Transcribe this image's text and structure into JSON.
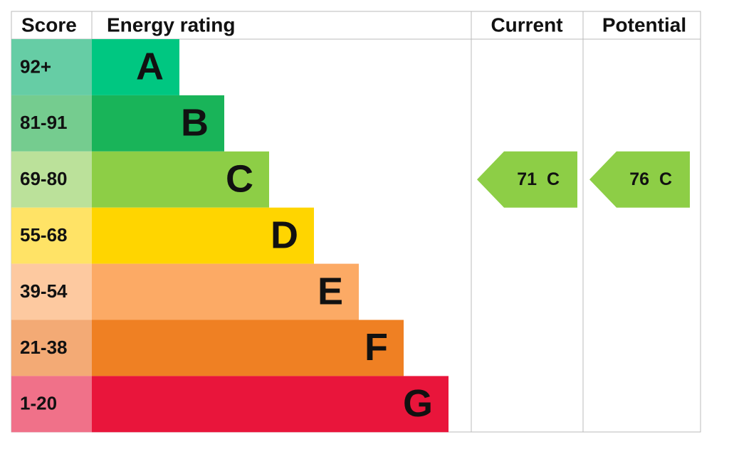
{
  "headers": [
    "Score",
    "Energy rating",
    "Current",
    "Potential"
  ],
  "bands": [
    {
      "score": "92+",
      "rating": "A",
      "color": "#00c781",
      "score_color": "#66cda5"
    },
    {
      "score": "81-91",
      "rating": "B",
      "color": "#19b459",
      "score_color": "#75cc8f"
    },
    {
      "score": "69-80",
      "rating": "C",
      "color": "#8dce46",
      "score_color": "#bbe19a"
    },
    {
      "score": "55-68",
      "rating": "D",
      "color": "#ffd500",
      "score_color": "#ffe366"
    },
    {
      "score": "39-54",
      "rating": "E",
      "color": "#fcaa65",
      "score_color": "#fdc9a0"
    },
    {
      "score": "21-38",
      "rating": "F",
      "color": "#ef8023",
      "score_color": "#f3aa75"
    },
    {
      "score": "1-20",
      "rating": "G",
      "color": "#e9153b",
      "score_color": "#f07189"
    }
  ],
  "current": {
    "value": 71,
    "rating": "C"
  },
  "potential": {
    "value": 76,
    "rating": "C"
  }
}
